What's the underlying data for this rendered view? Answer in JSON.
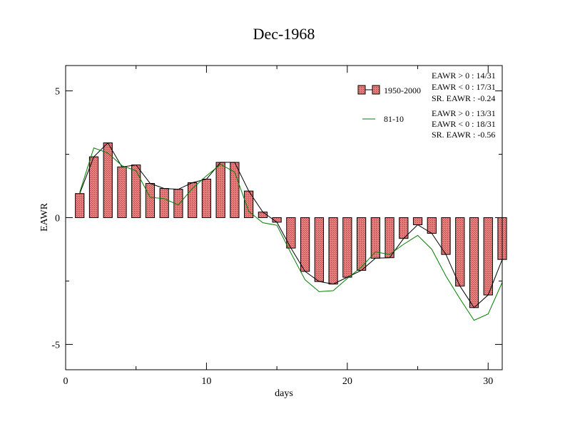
{
  "chart_data": {
    "type": "bar",
    "title": "Dec-1968",
    "xlabel": "days",
    "ylabel": "EAWR",
    "xlim": [
      0,
      31
    ],
    "ylim": [
      -6,
      6
    ],
    "x_ticks": [
      0,
      10,
      20,
      30
    ],
    "y_ticks": [
      -5,
      0,
      5
    ],
    "x_tick_labels": [
      "0",
      "10",
      "20",
      "30"
    ],
    "y_tick_labels": [
      "-5",
      "0",
      "5"
    ],
    "grid": false,
    "x": [
      1,
      2,
      3,
      4,
      5,
      6,
      7,
      8,
      9,
      10,
      11,
      12,
      13,
      14,
      15,
      16,
      17,
      18,
      19,
      20,
      21,
      22,
      23,
      24,
      25,
      26,
      27,
      28,
      29,
      30,
      31
    ],
    "series": [
      {
        "name": "1950-2000",
        "kind": "bar",
        "color": "#e88080",
        "values": [
          0.95,
          2.4,
          2.95,
          2.0,
          2.08,
          1.35,
          1.15,
          1.12,
          1.38,
          1.52,
          2.18,
          2.18,
          1.05,
          0.22,
          -0.18,
          -1.2,
          -2.12,
          -2.52,
          -2.62,
          -2.35,
          -2.08,
          -1.6,
          -1.58,
          -0.82,
          -0.28,
          -0.62,
          -1.45,
          -2.7,
          -3.55,
          -3.05,
          -1.65
        ]
      },
      {
        "name": "81-10",
        "kind": "line",
        "color": "#008000",
        "values": [
          1.0,
          2.75,
          2.55,
          2.05,
          1.85,
          0.8,
          0.75,
          0.5,
          1.15,
          1.65,
          2.1,
          1.8,
          0.25,
          -0.2,
          -0.3,
          -1.4,
          -2.45,
          -2.92,
          -2.88,
          -2.4,
          -1.95,
          -1.35,
          -1.45,
          -1.05,
          -0.7,
          -1.25,
          -2.3,
          -3.2,
          -4.05,
          -3.8,
          -2.55
        ]
      }
    ],
    "bar_outline_line": {
      "color": "#000000",
      "values": [
        0.95,
        2.4,
        2.95,
        2.0,
        2.08,
        1.35,
        1.15,
        1.12,
        1.38,
        1.52,
        2.18,
        2.18,
        1.05,
        0.22,
        -0.18,
        -1.2,
        -2.12,
        -2.52,
        -2.62,
        -2.35,
        -2.08,
        -1.6,
        -1.58,
        -0.82,
        -0.28,
        -0.62,
        -1.45,
        -2.7,
        -3.55,
        -3.05,
        -1.65
      ]
    },
    "legend": {
      "placement": "top-right",
      "entries": [
        {
          "label": "1950-2000",
          "stats": [
            "EAWR > 0 : 14/31",
            "EAWR < 0 : 17/31",
            "SR. EAWR : -0.24"
          ]
        },
        {
          "label": "81-10",
          "stats": [
            "EAWR > 0 : 13/31",
            "EAWR < 0 : 18/31",
            "SR. EAWR : -0.56"
          ]
        }
      ]
    }
  }
}
